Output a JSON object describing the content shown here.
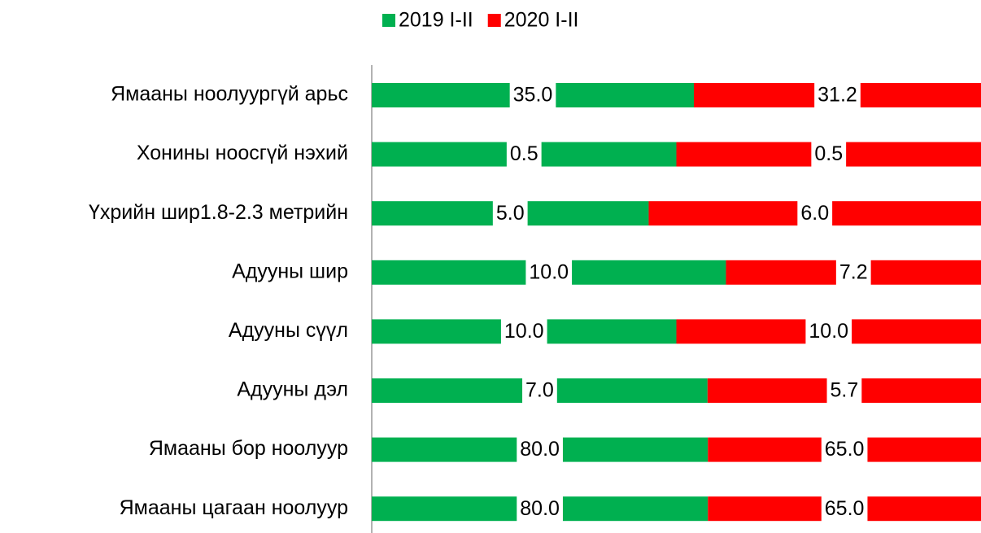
{
  "chart_data": {
    "type": "stacked_bar_100",
    "categories": [
      "Ямааны ноолуургүй арьс",
      "Хонины ноосгүй нэхий",
      "Үхрийн шир1.8-2.3 метрийн",
      "Адууны шир",
      "Адууны сүүл",
      "Адууны дэл",
      "Ямааны бор ноолуур",
      "Ямааны цагаан ноолуур"
    ],
    "series": [
      {
        "name": "2019 I-II",
        "color": "#00b050",
        "values": [
          35,
          0.5,
          5,
          10,
          10,
          7,
          80,
          80
        ],
        "value_labels": [
          "35.0",
          "0.5",
          "5.0",
          "10.0",
          "10.0",
          "7.0",
          "80.0",
          "80.0"
        ]
      },
      {
        "name": "2020 I-II",
        "color": "#ff0000",
        "values": [
          31.2,
          0.5,
          6,
          7.2,
          10,
          5.7,
          65,
          65
        ],
        "value_labels": [
          "31.2",
          "0.5",
          "6.0",
          "7.2",
          "10.0",
          "5.7",
          "65.0",
          "65.0"
        ]
      }
    ],
    "legend": "top"
  }
}
